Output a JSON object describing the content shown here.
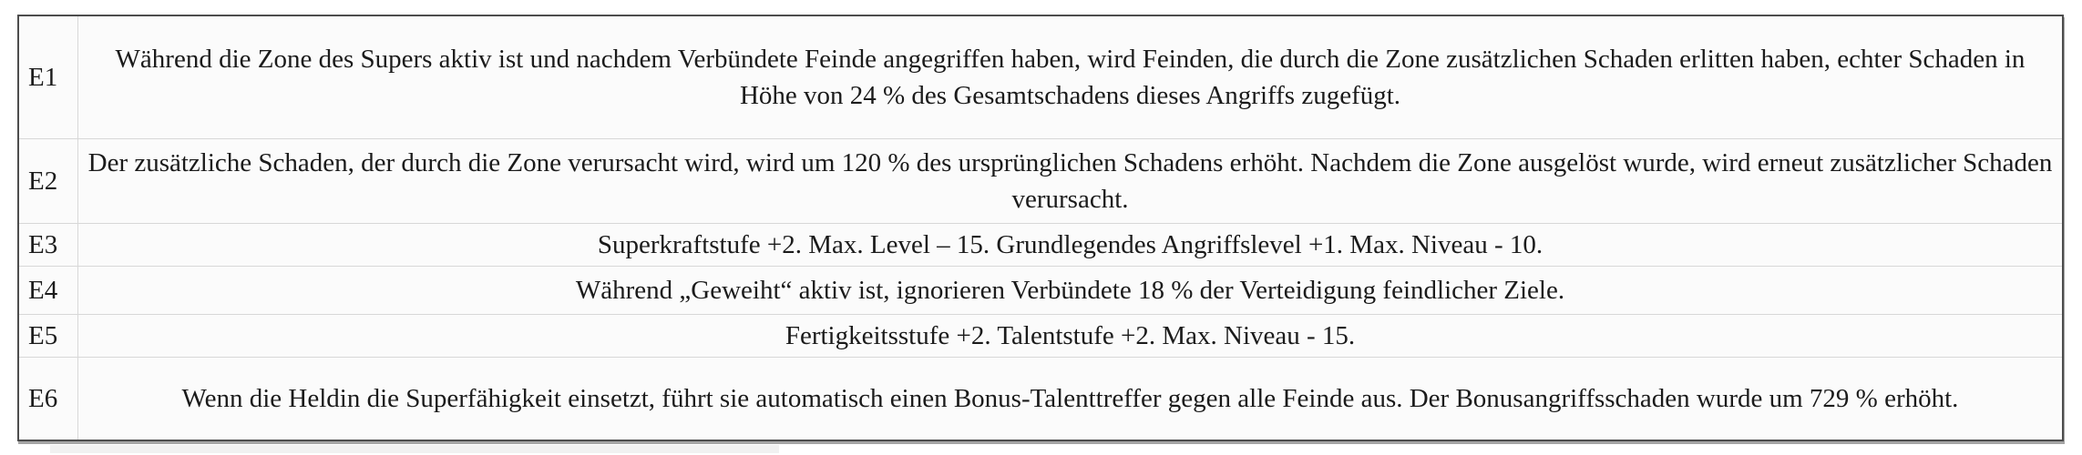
{
  "colors": {
    "outer_border": "#4d4d4d",
    "inner_border": "#d8d8d8",
    "cell_background": "#fbfbfb",
    "text": "#1b1b1b"
  },
  "table": {
    "rows": [
      {
        "id": "E1",
        "text": "Während die Zone des Supers aktiv ist und nachdem Verbündete Feinde angegriffen haben, wird Feinden, die durch die Zone zusätzlichen Schaden erlitten haben, echter Schaden in Höhe von 24 % des Gesamtschadens dieses Angriffs zugefügt."
      },
      {
        "id": "E2",
        "text": "Der zusätzliche Schaden, der durch die Zone verursacht wird, wird um 120 % des ursprünglichen Schadens erhöht. Nachdem die Zone ausgelöst wurde, wird erneut zusätzlicher Schaden verursacht."
      },
      {
        "id": "E3",
        "text": "Superkraftstufe +2. Max. Level – 15. Grundlegendes Angriffslevel +1. Max. Niveau - 10."
      },
      {
        "id": "E4",
        "text": "Während „Geweiht“ aktiv ist, ignorieren Verbündete 18 % der Verteidigung feindlicher Ziele."
      },
      {
        "id": "E5",
        "text": "Fertigkeitsstufe +2. Talentstufe +2. Max. Niveau - 15."
      },
      {
        "id": "E6",
        "text": "Wenn die Heldin die Superfähigkeit einsetzt, führt sie automatisch einen Bonus-Talenttreffer gegen alle Feinde aus. Der Bonusangriffsschaden wurde um 729 % erhöht."
      }
    ]
  }
}
